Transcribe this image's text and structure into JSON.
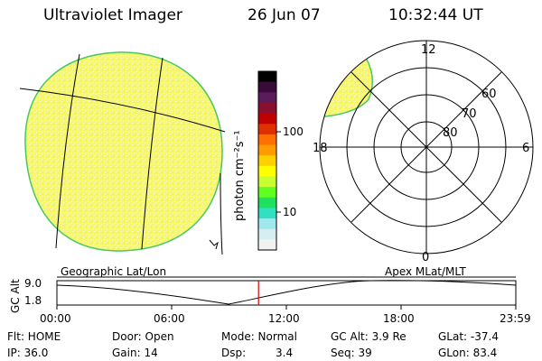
{
  "header": {
    "title": "Ultraviolet Imager",
    "date": "26 Jun 07",
    "time": "10:32:44 UT"
  },
  "colorbar": {
    "unit_label": "photon cm⁻²s⁻¹",
    "ticks": [
      "100",
      "10"
    ],
    "colors": [
      "#000000",
      "#3a0a3a",
      "#5b1c5b",
      "#8a1030",
      "#c00000",
      "#e03000",
      "#ff7000",
      "#ff9a00",
      "#ffd000",
      "#ffff00",
      "#c8ff30",
      "#60ff20",
      "#20e060",
      "#30e0c0",
      "#9ee8ee",
      "#d6eef2",
      "#f2f2f2"
    ]
  },
  "polar_plot": {
    "mlt_labels": [
      "12",
      "18",
      "6",
      "0"
    ],
    "mlat_labels": [
      "60",
      "70",
      "80"
    ]
  },
  "altitude_strip": {
    "axis_label": "GC Alt",
    "y_ticks": [
      "9.0",
      "1.8"
    ],
    "left_caption": "Geographic Lat/Lon",
    "right_caption": "Apex  MLat/MLT",
    "x_ticks": [
      "00:00",
      "06:00",
      "12:00",
      "18:00",
      "23:59"
    ],
    "current_time_fraction": 0.4393
  },
  "status": [
    {
      "label": "Flt: HOME",
      "cols": [
        {
          "k": "Door: Open"
        },
        {
          "k": "Mode: Normal"
        },
        {
          "k": "GC Alt: 3.9 Re"
        },
        {
          "k": "GLat: -37.4"
        }
      ]
    },
    {
      "label": "IP: 36.0",
      "cols": [
        {
          "k": "Gain: 14"
        },
        {
          "k": "Dsp:"
        },
        {
          "k": "Seq: 39"
        },
        {
          "k": "GLon:  83.4"
        }
      ]
    }
  ],
  "status_extra": {
    "dsp_value": "3.4"
  },
  "colors": {
    "earth_fill": "#f7f76a",
    "earth_edge": "#48c860",
    "speckle": "#ffffc8",
    "time_marker": "#dd0000"
  }
}
